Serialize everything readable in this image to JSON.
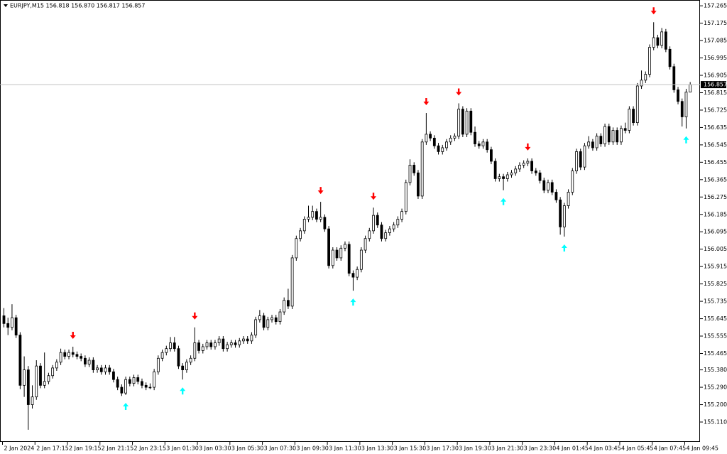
{
  "chart_data": {
    "type": "candlestick",
    "title": "EURJPY,M15  156.818 156.870 156.817 156.857",
    "colors": {
      "up_body": "#ffffff",
      "down_body": "#000000",
      "outline": "#000000",
      "signal_down": "#ff0000",
      "signal_up": "#00ffff"
    },
    "ylim": [
      155.007,
      157.295
    ],
    "yticks": [
      157.265,
      157.175,
      157.085,
      156.995,
      156.905,
      156.815,
      156.725,
      156.635,
      156.545,
      156.455,
      156.365,
      156.275,
      156.185,
      156.095,
      156.005,
      155.915,
      155.825,
      155.735,
      155.645,
      155.555,
      155.465,
      {
        "value": 155.38,
        "label": "155.380"
      },
      {
        "value": 155.29,
        "label": "155.290"
      },
      {
        "value": 155.2,
        "label": "155.200"
      },
      {
        "value": 155.11,
        "label": "155.110"
      }
    ],
    "last_price": 156.857,
    "categories": [
      "2 Jan 2024",
      null,
      null,
      null,
      null,
      null,
      null,
      null,
      "2 Jan 17:15",
      null,
      null,
      null,
      null,
      null,
      null,
      null,
      "2 Jan 19:15",
      null,
      null,
      null,
      null,
      null,
      null,
      null,
      "2 Jan 21:15",
      null,
      null,
      null,
      null,
      null,
      null,
      null,
      "2 Jan 23:15",
      null,
      null,
      null,
      null,
      null,
      null,
      null,
      "3 Jan 01:30",
      null,
      null,
      null,
      null,
      null,
      null,
      null,
      "3 Jan 03:30",
      null,
      null,
      null,
      null,
      null,
      null,
      null,
      "3 Jan 05:30",
      null,
      null,
      null,
      null,
      null,
      null,
      null,
      "3 Jan 07:30",
      null,
      null,
      null,
      null,
      null,
      null,
      null,
      "3 Jan 09:30",
      null,
      null,
      null,
      null,
      null,
      null,
      null,
      "3 Jan 11:30",
      null,
      null,
      null,
      null,
      null,
      null,
      null,
      "3 Jan 13:30",
      null,
      null,
      null,
      null,
      null,
      null,
      null,
      "3 Jan 15:30",
      null,
      null,
      null,
      null,
      null,
      null,
      null,
      "3 Jan 17:30",
      null,
      null,
      null,
      null,
      null,
      null,
      null,
      "3 Jan 19:30",
      null,
      null,
      null,
      null,
      null,
      null,
      null,
      "3 Jan 21:30",
      null,
      null,
      null,
      null,
      null,
      null,
      null,
      "3 Jan 23:30",
      null,
      null,
      null,
      null,
      null,
      null,
      null,
      "4 Jan 01:45",
      null,
      null,
      null,
      null,
      null,
      null,
      null,
      "4 Jan 03:45",
      null,
      null,
      null,
      null,
      null,
      null,
      null,
      "4 Jan 05:45",
      null,
      null,
      null,
      null,
      null,
      null,
      null,
      "4 Jan 07:45",
      null,
      null,
      null,
      null,
      null,
      null,
      null,
      "4 Jan 09:45",
      null
    ],
    "ohlc": [
      [
        155.66,
        155.7,
        155.6,
        155.62
      ],
      [
        155.62,
        155.65,
        155.56,
        155.6
      ],
      [
        155.6,
        155.72,
        155.585,
        155.65
      ],
      [
        155.65,
        155.665,
        155.545,
        155.56
      ],
      [
        155.56,
        155.575,
        155.28,
        155.3
      ],
      [
        155.3,
        155.45,
        155.24,
        155.38
      ],
      [
        155.38,
        155.4,
        155.07,
        155.2
      ],
      [
        155.2,
        155.3,
        155.18,
        155.24
      ],
      [
        155.24,
        155.43,
        155.225,
        155.4
      ],
      [
        155.4,
        155.415,
        155.285,
        155.3
      ],
      [
        155.3,
        155.47,
        155.285,
        155.32
      ],
      [
        155.32,
        155.365,
        155.305,
        155.35
      ],
      [
        155.35,
        155.405,
        155.335,
        155.39
      ],
      [
        155.39,
        155.435,
        155.375,
        155.42
      ],
      [
        155.42,
        155.49,
        155.405,
        155.47
      ],
      [
        155.47,
        155.485,
        155.435,
        155.45
      ],
      [
        155.45,
        155.485,
        155.435,
        155.47
      ],
      [
        155.47,
        155.5,
        155.445,
        155.46
      ],
      [
        155.46,
        155.475,
        155.435,
        155.45
      ],
      [
        155.45,
        155.465,
        155.425,
        155.44
      ],
      [
        155.44,
        155.455,
        155.395,
        155.41
      ],
      [
        155.41,
        155.445,
        155.395,
        155.43
      ],
      [
        155.43,
        155.445,
        155.365,
        155.38
      ],
      [
        155.38,
        155.405,
        155.365,
        155.39
      ],
      [
        155.39,
        155.405,
        155.355,
        155.37
      ],
      [
        155.37,
        155.405,
        155.355,
        155.39
      ],
      [
        155.39,
        155.405,
        155.355,
        155.37
      ],
      [
        155.37,
        155.385,
        155.315,
        155.33
      ],
      [
        155.33,
        155.345,
        155.275,
        155.29
      ],
      [
        155.29,
        155.305,
        155.245,
        155.26
      ],
      [
        155.26,
        155.345,
        155.25,
        155.33
      ],
      [
        155.33,
        155.345,
        155.295,
        155.31
      ],
      [
        155.31,
        155.355,
        155.295,
        155.34
      ],
      [
        155.34,
        155.355,
        155.305,
        155.32
      ],
      [
        155.32,
        155.335,
        155.285,
        155.3
      ],
      [
        155.3,
        155.315,
        155.275,
        155.29
      ],
      [
        155.29,
        155.31,
        155.28,
        155.29
      ],
      [
        155.29,
        155.385,
        155.275,
        155.37
      ],
      [
        155.37,
        155.455,
        155.355,
        155.44
      ],
      [
        155.44,
        155.485,
        155.425,
        155.47
      ],
      [
        155.47,
        155.505,
        155.455,
        155.49
      ],
      [
        155.49,
        155.55,
        155.475,
        155.52
      ],
      [
        155.52,
        155.55,
        155.475,
        155.49
      ],
      [
        155.49,
        155.505,
        155.385,
        155.4
      ],
      [
        155.4,
        155.415,
        155.33,
        155.38
      ],
      [
        155.38,
        155.435,
        155.365,
        155.42
      ],
      [
        155.42,
        155.455,
        155.405,
        155.44
      ],
      [
        155.44,
        155.6,
        155.425,
        155.52
      ],
      [
        155.52,
        155.535,
        155.465,
        155.48
      ],
      [
        155.48,
        155.515,
        155.465,
        155.5
      ],
      [
        155.5,
        155.535,
        155.485,
        155.52
      ],
      [
        155.52,
        155.535,
        155.485,
        155.5
      ],
      [
        155.5,
        155.535,
        155.485,
        155.52
      ],
      [
        155.52,
        155.555,
        155.505,
        155.54
      ],
      [
        155.54,
        155.555,
        155.475,
        155.49
      ],
      [
        155.49,
        155.525,
        155.475,
        155.51
      ],
      [
        155.51,
        155.535,
        155.495,
        155.52
      ],
      [
        155.52,
        155.535,
        155.495,
        155.51
      ],
      [
        155.51,
        155.545,
        155.495,
        155.53
      ],
      [
        155.53,
        155.555,
        155.515,
        155.54
      ],
      [
        155.54,
        155.555,
        155.515,
        155.53
      ],
      [
        155.53,
        155.575,
        155.515,
        155.56
      ],
      [
        155.56,
        155.655,
        155.545,
        155.64
      ],
      [
        155.64,
        155.69,
        155.625,
        155.66
      ],
      [
        155.66,
        155.675,
        155.585,
        155.6
      ],
      [
        155.6,
        155.655,
        155.585,
        155.64
      ],
      [
        155.64,
        155.665,
        155.625,
        155.65
      ],
      [
        155.65,
        155.665,
        155.615,
        155.63
      ],
      [
        155.63,
        155.695,
        155.615,
        155.68
      ],
      [
        155.68,
        155.755,
        155.665,
        155.74
      ],
      [
        155.74,
        155.8,
        155.695,
        155.71
      ],
      [
        155.71,
        155.975,
        155.695,
        155.96
      ],
      [
        155.96,
        156.075,
        155.945,
        156.06
      ],
      [
        156.06,
        156.115,
        156.045,
        156.1
      ],
      [
        156.1,
        156.175,
        156.085,
        156.16
      ],
      [
        156.16,
        156.23,
        156.145,
        156.17
      ],
      [
        156.17,
        156.23,
        156.155,
        156.2
      ],
      [
        156.2,
        156.215,
        156.145,
        156.16
      ],
      [
        156.16,
        156.25,
        156.145,
        156.17
      ],
      [
        156.17,
        156.185,
        156.095,
        156.11
      ],
      [
        156.11,
        156.125,
        155.905,
        155.92
      ],
      [
        155.92,
        156.015,
        155.905,
        156.0
      ],
      [
        156.0,
        156.015,
        155.945,
        155.96
      ],
      [
        155.96,
        156.025,
        155.945,
        156.01
      ],
      [
        156.01,
        156.045,
        155.995,
        156.03
      ],
      [
        156.03,
        156.045,
        155.865,
        155.88
      ],
      [
        155.88,
        155.895,
        155.79,
        155.86
      ],
      [
        155.86,
        155.915,
        155.845,
        155.9
      ],
      [
        155.9,
        156.015,
        155.885,
        156.0
      ],
      [
        156.0,
        156.075,
        155.985,
        156.06
      ],
      [
        156.06,
        156.115,
        156.045,
        156.1
      ],
      [
        156.1,
        156.22,
        156.085,
        156.18
      ],
      [
        156.18,
        156.195,
        156.115,
        156.13
      ],
      [
        156.13,
        156.145,
        156.045,
        156.06
      ],
      [
        156.06,
        156.105,
        156.045,
        156.09
      ],
      [
        156.09,
        156.125,
        156.075,
        156.11
      ],
      [
        156.11,
        156.145,
        156.095,
        156.13
      ],
      [
        156.13,
        156.175,
        156.115,
        156.16
      ],
      [
        156.16,
        156.215,
        156.145,
        156.2
      ],
      [
        156.2,
        156.365,
        156.185,
        156.35
      ],
      [
        156.35,
        156.47,
        156.335,
        156.44
      ],
      [
        156.44,
        156.455,
        156.385,
        156.4
      ],
      [
        156.4,
        156.415,
        156.265,
        156.28
      ],
      [
        156.28,
        156.575,
        156.265,
        156.56
      ],
      [
        156.56,
        156.71,
        156.545,
        156.6
      ],
      [
        156.6,
        156.615,
        156.565,
        156.58
      ],
      [
        156.58,
        156.595,
        156.525,
        156.54
      ],
      [
        156.54,
        156.555,
        156.495,
        156.51
      ],
      [
        156.51,
        156.545,
        156.495,
        156.53
      ],
      [
        156.53,
        156.575,
        156.515,
        156.56
      ],
      [
        156.56,
        156.595,
        156.545,
        156.58
      ],
      [
        156.58,
        156.605,
        156.565,
        156.59
      ],
      [
        156.59,
        156.76,
        156.575,
        156.73
      ],
      [
        156.73,
        156.745,
        156.585,
        156.6
      ],
      [
        156.6,
        156.735,
        156.585,
        156.72
      ],
      [
        156.72,
        156.735,
        156.595,
        156.61
      ],
      [
        156.61,
        156.64,
        156.535,
        156.55
      ],
      [
        156.55,
        156.565,
        156.525,
        156.54
      ],
      [
        156.54,
        156.575,
        156.525,
        156.56
      ],
      [
        156.56,
        156.575,
        156.505,
        156.52
      ],
      [
        156.52,
        156.535,
        156.445,
        156.46
      ],
      [
        156.46,
        156.475,
        156.355,
        156.37
      ],
      [
        156.37,
        156.395,
        156.355,
        156.38
      ],
      [
        156.38,
        156.395,
        156.31,
        156.37
      ],
      [
        156.37,
        156.405,
        156.355,
        156.39
      ],
      [
        156.39,
        156.415,
        156.375,
        156.4
      ],
      [
        156.4,
        156.435,
        156.385,
        156.42
      ],
      [
        156.42,
        156.455,
        156.405,
        156.44
      ],
      [
        156.44,
        156.465,
        156.425,
        156.45
      ],
      [
        156.45,
        156.475,
        156.435,
        156.46
      ],
      [
        156.46,
        156.475,
        156.395,
        156.41
      ],
      [
        156.41,
        156.425,
        156.385,
        156.4
      ],
      [
        156.4,
        156.415,
        156.345,
        156.36
      ],
      [
        156.36,
        156.375,
        156.295,
        156.31
      ],
      [
        156.31,
        156.365,
        156.295,
        156.35
      ],
      [
        156.35,
        156.365,
        156.285,
        156.3
      ],
      [
        156.3,
        156.315,
        156.245,
        156.26
      ],
      [
        156.26,
        156.275,
        156.08,
        156.12
      ],
      [
        156.12,
        156.245,
        156.07,
        156.23
      ],
      [
        156.23,
        156.315,
        156.215,
        156.3
      ],
      [
        156.3,
        156.425,
        156.285,
        156.41
      ],
      [
        156.41,
        156.525,
        156.395,
        156.51
      ],
      [
        156.51,
        156.525,
        156.415,
        156.43
      ],
      [
        156.43,
        156.555,
        156.415,
        156.54
      ],
      [
        156.54,
        156.59,
        156.525,
        156.56
      ],
      [
        156.56,
        156.575,
        156.515,
        156.53
      ],
      [
        156.53,
        156.605,
        156.515,
        156.59
      ],
      [
        156.59,
        156.605,
        156.535,
        156.55
      ],
      [
        156.55,
        156.655,
        156.535,
        156.64
      ],
      [
        156.64,
        156.655,
        156.545,
        156.56
      ],
      [
        156.56,
        156.635,
        156.545,
        156.62
      ],
      [
        156.62,
        156.635,
        156.545,
        156.56
      ],
      [
        156.56,
        156.645,
        156.545,
        156.63
      ],
      [
        156.63,
        156.66,
        156.605,
        156.62
      ],
      [
        156.62,
        156.745,
        156.605,
        156.73
      ],
      [
        156.73,
        156.745,
        156.645,
        156.66
      ],
      [
        156.66,
        156.865,
        156.645,
        156.85
      ],
      [
        156.85,
        156.93,
        156.835,
        156.88
      ],
      [
        156.88,
        156.925,
        156.865,
        156.91
      ],
      [
        156.91,
        157.065,
        156.895,
        157.05
      ],
      [
        157.05,
        157.18,
        157.035,
        157.1
      ],
      [
        157.1,
        157.115,
        157.045,
        157.06
      ],
      [
        157.06,
        157.15,
        157.045,
        157.13
      ],
      [
        157.13,
        157.145,
        157.025,
        157.04
      ],
      [
        157.04,
        157.055,
        156.935,
        156.95
      ],
      [
        156.95,
        156.965,
        156.815,
        156.83
      ],
      [
        156.83,
        156.845,
        156.755,
        156.77
      ],
      [
        156.77,
        156.785,
        156.64,
        156.69
      ],
      [
        156.69,
        156.835,
        156.63,
        156.818
      ],
      [
        156.818,
        156.87,
        156.817,
        156.857
      ]
    ],
    "signals_down": [
      17,
      47,
      78,
      91,
      104,
      112,
      129,
      160
    ],
    "signals_up": [
      30,
      44,
      86,
      123,
      138,
      168
    ]
  }
}
